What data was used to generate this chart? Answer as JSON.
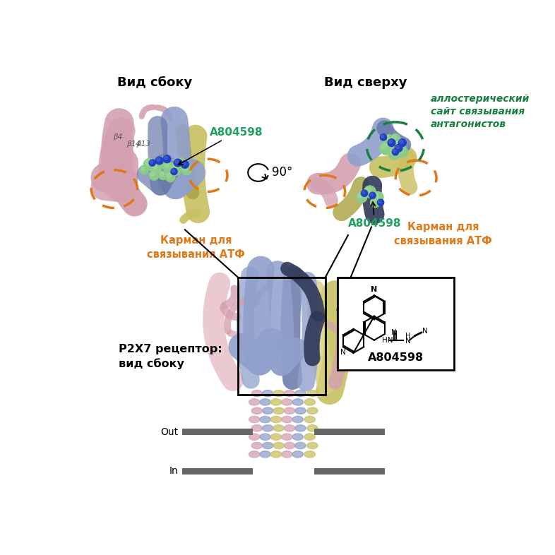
{
  "bg_color": "#ffffff",
  "title_side_view": "Вид сбоку",
  "title_top_view": "Вид сверху",
  "label_receptor": "P2X7 рецептор:\nвид сбоку",
  "label_atf_pocket1": "Карман для\nсвязывания АТФ",
  "label_atf_pocket2": "Карман для\nсвязывания АТФ",
  "label_allosteric": "аллостерический\nсайт связывания\nантагонистов",
  "label_a804598": "A804598",
  "label_out": "Out",
  "label_in": "In",
  "label_90": "90°",
  "beta4": "β4",
  "beta13": "β13",
  "beta14": "β14",
  "orange": "#E07818",
  "green_label": "#20A060",
  "dark_green": "#1A8040",
  "gray_bar": "#666666",
  "pink": "#D4A0B0",
  "blue": "#90A0CC",
  "yellow": "#C8C060",
  "navy": "#303858",
  "dark_blue": "#6878A8",
  "light_pink": "#E8C0C8",
  "light_yellow": "#D8D080",
  "green_sphere": "#88CC88",
  "blue_sphere": "#2040C0",
  "green_sphere_light": "#AADAAA"
}
